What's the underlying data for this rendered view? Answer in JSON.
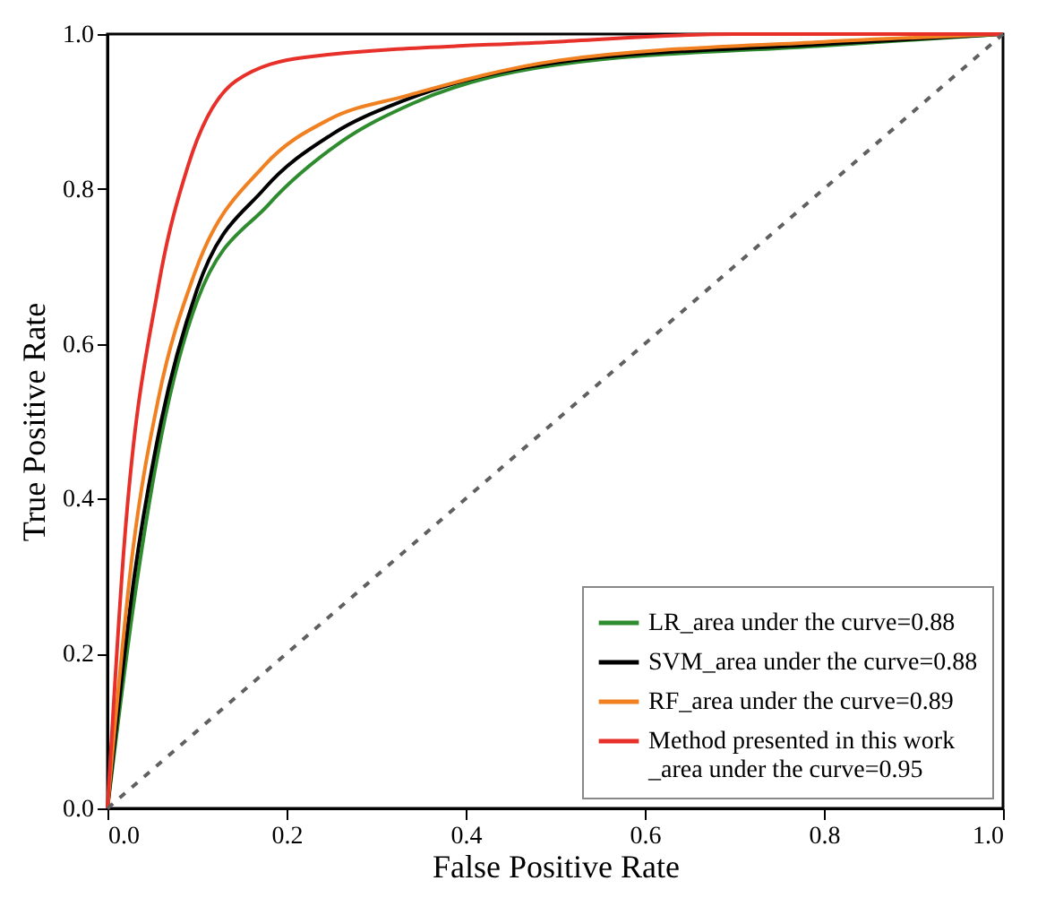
{
  "chart_data": {
    "type": "line",
    "xlabel": "False Positive Rate",
    "ylabel": "True Positive Rate",
    "xlim": [
      0,
      1
    ],
    "ylim": [
      0,
      1
    ],
    "xticks": [
      {
        "value": 0,
        "label": "0.0"
      },
      0.2,
      0.4,
      0.6,
      0.8,
      {
        "value": 1,
        "label": "1.0"
      }
    ],
    "yticks": [
      {
        "value": 0,
        "label": "0.0"
      },
      0.2,
      0.4,
      0.6,
      0.8,
      {
        "value": 1,
        "label": "1.0"
      }
    ],
    "grid": false,
    "legend": "bottom right",
    "marker": "none",
    "line_style": "solid",
    "series": [
      {
        "name": "LR_area under the curve=0.88",
        "color": "#2e8b2e",
        "x": [
          0,
          0.03,
          0.06,
          0.1,
          0.18,
          0.26,
          0.34,
          0.5,
          0.8,
          1
        ],
        "values": [
          0,
          0.27,
          0.48,
          0.655,
          0.78,
          0.86,
          0.91,
          0.96,
          0.985,
          1
        ]
      },
      {
        "name": "SVM_area under the curve=0.88",
        "color": "#000000",
        "x": [
          0,
          0.03,
          0.06,
          0.1,
          0.175,
          0.25,
          0.333,
          0.5,
          0.8,
          1
        ],
        "values": [
          0,
          0.3,
          0.5,
          0.67,
          0.8,
          0.87,
          0.915,
          0.963,
          0.987,
          1
        ]
      },
      {
        "name": "RF_area under the curve=0.89",
        "color": "#f08020",
        "x": [
          0,
          0.028,
          0.057,
          0.097,
          0.175,
          0.248,
          0.333,
          0.504,
          0.8,
          1
        ],
        "values": [
          0,
          0.33,
          0.53,
          0.69,
          0.83,
          0.89,
          0.92,
          0.966,
          0.99,
          1
        ]
      },
      {
        "name": "Method presented in this work\n_area under the curve=0.95",
        "color": "#e8302a",
        "x": [
          0,
          0.018,
          0.057,
          0.09,
          0.144,
          0.22,
          0.5,
          0.7,
          1
        ],
        "values": [
          0,
          0.33,
          0.675,
          0.83,
          0.94,
          0.97,
          0.99,
          1,
          1
        ]
      },
      {
        "color": "#606060",
        "line_style": "dashed",
        "x": [
          0,
          1
        ],
        "values": [
          0,
          1
        ]
      }
    ]
  }
}
